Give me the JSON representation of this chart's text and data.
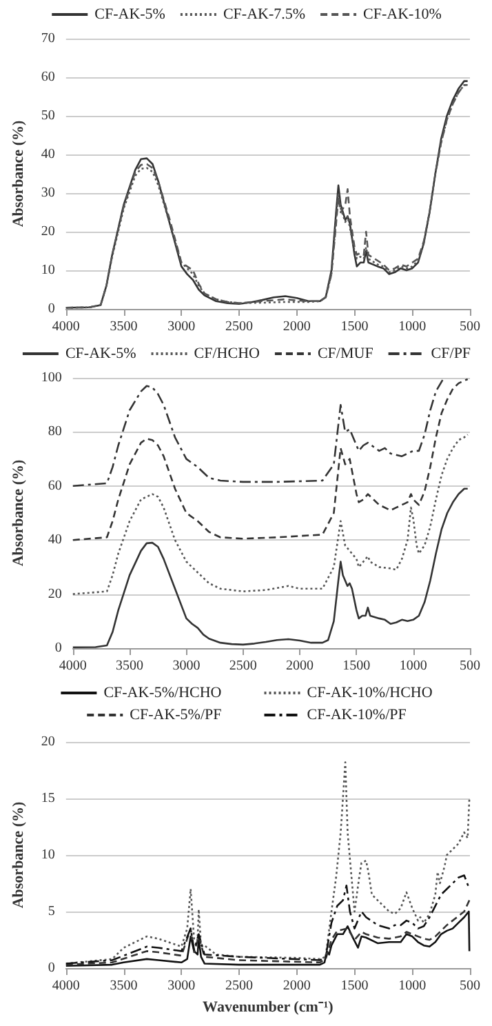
{
  "chart_data": [
    {
      "type": "line",
      "ylabel": "Absorbance (%)",
      "xlim": [
        4000,
        500
      ],
      "xticks": [
        4000,
        3500,
        3000,
        2500,
        2000,
        1500,
        1000,
        500
      ],
      "ylim": [
        0,
        70
      ],
      "yticks": [
        0,
        10,
        20,
        30,
        40,
        50,
        60,
        70
      ],
      "grid": "y",
      "legend": "top",
      "marker": "none",
      "series": [
        {
          "name": "CF-AK-5%",
          "color": "#333333",
          "line_style": "solid",
          "x": [
            4000,
            3800,
            3700,
            3650,
            3600,
            3500,
            3400,
            3350,
            3300,
            3250,
            3200,
            3100,
            3000,
            2950,
            2900,
            2850,
            2800,
            2700,
            2600,
            2500,
            2400,
            2300,
            2200,
            2100,
            2000,
            1900,
            1800,
            1750,
            1700,
            1660,
            1640,
            1620,
            1580,
            1560,
            1540,
            1500,
            1480,
            1450,
            1420,
            1400,
            1380,
            1300,
            1250,
            1200,
            1150,
            1100,
            1050,
            1000,
            950,
            900,
            850,
            800,
            750,
            700,
            650,
            600,
            550,
            520
          ],
          "values": [
            0.3,
            0.4,
            1,
            6,
            14,
            27,
            36,
            38.8,
            39,
            37.5,
            33,
            22,
            11,
            9,
            7.5,
            5,
            3.5,
            2,
            1.5,
            1.3,
            1.7,
            2.3,
            3,
            3.3,
            2.8,
            2,
            2,
            3,
            10,
            25,
            32,
            27,
            23,
            24,
            22,
            14,
            11,
            12,
            12,
            15,
            12,
            11,
            10.5,
            9,
            9.5,
            10.5,
            10,
            10.5,
            12,
            17,
            25,
            35,
            44,
            50,
            54,
            57,
            59,
            59
          ]
        },
        {
          "name": "CF-AK-7.5%",
          "color": "#555555",
          "line_style": "dotted",
          "x": [
            4000,
            3800,
            3700,
            3650,
            3600,
            3500,
            3400,
            3350,
            3300,
            3250,
            3200,
            3100,
            3000,
            2950,
            2900,
            2850,
            2800,
            2700,
            2600,
            2500,
            2300,
            2100,
            2000,
            1900,
            1800,
            1750,
            1700,
            1660,
            1640,
            1620,
            1580,
            1560,
            1540,
            1500,
            1480,
            1450,
            1420,
            1400,
            1380,
            1300,
            1250,
            1200,
            1150,
            1100,
            1050,
            1000,
            950,
            900,
            850,
            800,
            750,
            700,
            650,
            600,
            550,
            520
          ],
          "values": [
            0.3,
            0.4,
            1,
            6,
            13.5,
            26,
            34.5,
            36.3,
            36.5,
            35.5,
            32,
            22,
            12,
            10.5,
            9,
            6,
            4,
            2.5,
            1.8,
            1.5,
            1.6,
            1.8,
            1.8,
            1.8,
            2,
            3,
            9,
            23,
            30,
            26,
            22.5,
            24,
            21,
            15,
            13,
            13.5,
            13,
            16,
            13,
            11.5,
            11,
            9.5,
            10,
            11,
            10.5,
            11,
            12.5,
            17,
            25,
            35,
            43,
            49,
            53,
            56,
            58,
            58
          ]
        },
        {
          "name": "CF-AK-10%",
          "color": "#555555",
          "line_style": "dashed",
          "x": [
            4000,
            3800,
            3700,
            3650,
            3600,
            3500,
            3400,
            3350,
            3300,
            3250,
            3200,
            3100,
            3000,
            2950,
            2900,
            2850,
            2800,
            2700,
            2600,
            2500,
            2300,
            2100,
            2000,
            1900,
            1800,
            1750,
            1700,
            1660,
            1640,
            1620,
            1580,
            1560,
            1540,
            1500,
            1480,
            1450,
            1420,
            1400,
            1380,
            1300,
            1250,
            1200,
            1150,
            1100,
            1050,
            1000,
            950,
            900,
            850,
            800,
            750,
            700,
            650,
            600,
            550,
            520
          ],
          "values": [
            0.3,
            0.4,
            1,
            6,
            14,
            26.5,
            35.5,
            37.3,
            37.5,
            36.5,
            33,
            23,
            12,
            11,
            10,
            6.5,
            4,
            2.5,
            1.8,
            1.5,
            2,
            2.5,
            2.2,
            2,
            2,
            3,
            9,
            22,
            29,
            25,
            27,
            31,
            24,
            16,
            14,
            14.5,
            14,
            20,
            14,
            12.5,
            11.5,
            10,
            10.5,
            11.5,
            11,
            12,
            13,
            17.5,
            25,
            35,
            43,
            49,
            53,
            56,
            58,
            58
          ]
        }
      ]
    },
    {
      "type": "line",
      "ylabel": "Absorbance (%)",
      "xlim": [
        4000,
        500
      ],
      "xticks": [
        4000,
        3500,
        3000,
        2500,
        2000,
        1500,
        1000,
        500
      ],
      "ylim": [
        0,
        100
      ],
      "yticks": [
        0,
        20,
        40,
        60,
        80,
        100
      ],
      "grid": "y",
      "legend": "top",
      "marker": "none",
      "series": [
        {
          "name": "CF-AK-5%",
          "color": "#333333",
          "line_style": "solid",
          "x": [
            4000,
            3800,
            3700,
            3650,
            3600,
            3500,
            3400,
            3350,
            3300,
            3250,
            3200,
            3100,
            3000,
            2950,
            2900,
            2850,
            2800,
            2700,
            2600,
            2500,
            2400,
            2300,
            2200,
            2100,
            2000,
            1900,
            1800,
            1750,
            1700,
            1660,
            1640,
            1620,
            1580,
            1560,
            1540,
            1500,
            1480,
            1450,
            1420,
            1400,
            1380,
            1300,
            1250,
            1200,
            1150,
            1100,
            1050,
            1000,
            950,
            900,
            850,
            800,
            750,
            700,
            650,
            600,
            550,
            520
          ],
          "values": [
            0.3,
            0.4,
            1,
            6,
            14,
            27,
            36,
            38.8,
            39,
            37.5,
            33,
            22,
            11,
            9,
            7.5,
            5,
            3.5,
            2,
            1.5,
            1.3,
            1.7,
            2.3,
            3,
            3.3,
            2.8,
            2,
            2,
            3,
            10,
            25,
            32,
            27,
            23,
            24,
            22,
            14,
            11,
            12,
            12,
            15,
            12,
            11,
            10.5,
            9,
            9.5,
            10.5,
            10,
            10.5,
            12,
            17,
            25,
            35,
            44,
            50,
            54,
            57,
            59,
            59
          ]
        },
        {
          "name": "CF/HCHO",
          "color": "#555555",
          "line_style": "dotted",
          "x": [
            4000,
            3700,
            3650,
            3600,
            3500,
            3400,
            3300,
            3250,
            3200,
            3100,
            3000,
            2900,
            2800,
            2700,
            2500,
            2300,
            2100,
            2000,
            1800,
            1700,
            1640,
            1600,
            1560,
            1500,
            1480,
            1440,
            1400,
            1380,
            1300,
            1200,
            1150,
            1100,
            1050,
            1020,
            1000,
            970,
            950,
            900,
            850,
            800,
            750,
            700,
            650,
            600,
            550,
            520
          ],
          "values": [
            20,
            21,
            27,
            35,
            47,
            55,
            57,
            56,
            52,
            40,
            32,
            28,
            24,
            22,
            21,
            21.5,
            23,
            22,
            22,
            30,
            47,
            38,
            36,
            33,
            30,
            32,
            34,
            32,
            30,
            29.5,
            29,
            33,
            40,
            52,
            48,
            38,
            35,
            38,
            45,
            55,
            64,
            70,
            74,
            77,
            78,
            79
          ]
        },
        {
          "name": "CF/MUF",
          "color": "#333333",
          "line_style": "dashed",
          "x": [
            4000,
            3700,
            3650,
            3600,
            3500,
            3400,
            3350,
            3300,
            3250,
            3200,
            3100,
            3000,
            2900,
            2800,
            2700,
            2500,
            2200,
            1800,
            1700,
            1640,
            1600,
            1560,
            1500,
            1480,
            1440,
            1400,
            1300,
            1200,
            1150,
            1100,
            1050,
            1020,
            1000,
            950,
            900,
            850,
            800,
            750,
            700,
            650,
            600,
            550,
            520
          ],
          "values": [
            40,
            41,
            47,
            55,
            68,
            76,
            77.5,
            77,
            75,
            71,
            59,
            50,
            47,
            43,
            41,
            40.5,
            41,
            42,
            50,
            74,
            68,
            70,
            57,
            54,
            55,
            57,
            53,
            51,
            52,
            53,
            54,
            57,
            55,
            53,
            58,
            67,
            78,
            87,
            92,
            96,
            98,
            99,
            99.5
          ]
        },
        {
          "name": "CF/PF",
          "color": "#333333",
          "line_style": "dashdot",
          "x": [
            4000,
            3700,
            3650,
            3600,
            3500,
            3400,
            3350,
            3300,
            3250,
            3200,
            3100,
            3000,
            2900,
            2800,
            2700,
            2500,
            2200,
            1800,
            1700,
            1640,
            1600,
            1560,
            1500,
            1480,
            1440,
            1400,
            1300,
            1250,
            1200,
            1100,
            1050,
            1000,
            950,
            900,
            850,
            800,
            730
          ],
          "values": [
            60,
            61,
            67,
            75,
            88,
            95,
            97,
            96.5,
            94,
            90,
            78,
            70,
            67,
            63,
            62,
            61.5,
            61.5,
            62,
            68,
            90,
            80,
            81,
            75,
            73,
            75,
            76,
            73,
            74,
            72,
            71,
            72,
            73,
            73,
            79,
            88,
            95,
            100
          ]
        }
      ]
    },
    {
      "type": "line",
      "ylabel": "Absorbance (%)",
      "xlabel": "Wavenumber (cm⁻¹)",
      "xlim": [
        4000,
        500
      ],
      "xticks": [
        4000,
        3500,
        3000,
        2500,
        2000,
        1500,
        1000,
        500
      ],
      "ylim": [
        0,
        20
      ],
      "yticks": [
        0,
        5,
        10,
        15,
        20
      ],
      "grid": "y",
      "legend": "top",
      "marker": "none",
      "series": [
        {
          "name": "CF-AK-5%/HCHO",
          "color": "#111111",
          "line_style": "solid",
          "x": [
            4000,
            3600,
            3500,
            3300,
            3200,
            3000,
            2950,
            2920,
            2890,
            2860,
            2850,
            2830,
            2800,
            2500,
            1800,
            1760,
            1740,
            1720,
            1700,
            1650,
            1600,
            1560,
            1520,
            1500,
            1470,
            1440,
            1400,
            1300,
            1200,
            1100,
            1050,
            1000,
            950,
            900,
            850,
            800,
            750,
            700,
            650,
            600,
            550,
            510,
            505
          ],
          "values": [
            0.2,
            0.3,
            0.5,
            0.8,
            0.7,
            0.5,
            0.8,
            2.8,
            1.5,
            1.2,
            2.6,
            1,
            0.4,
            0.3,
            0.3,
            0.5,
            1.5,
            1.2,
            2,
            3,
            3,
            3.7,
            2.8,
            2.4,
            1.8,
            2.8,
            2.7,
            2.2,
            2.3,
            2.3,
            3,
            2.8,
            2.3,
            2,
            1.9,
            2.3,
            3,
            3.3,
            3.5,
            4,
            4.5,
            5,
            1.5
          ]
        },
        {
          "name": "CF-AK-10%/HCHO",
          "color": "#555555",
          "line_style": "dotted",
          "x": [
            4000,
            3600,
            3500,
            3300,
            3200,
            3000,
            2950,
            2920,
            2890,
            2860,
            2850,
            2830,
            2800,
            2700,
            2500,
            2000,
            1800,
            1750,
            1700,
            1660,
            1620,
            1580,
            1560,
            1500,
            1460,
            1440,
            1400,
            1380,
            1350,
            1300,
            1200,
            1150,
            1100,
            1050,
            1000,
            950,
            930,
            900,
            850,
            800,
            780,
            760,
            720,
            700,
            650,
            600,
            550,
            520,
            505
          ],
          "values": [
            0.4,
            0.8,
            1.8,
            2.8,
            2.6,
            1.9,
            3.5,
            7,
            2.5,
            2.5,
            5.2,
            2,
            2,
            1.2,
            1,
            0.9,
            0.8,
            1,
            5,
            8,
            12,
            18.2,
            12,
            5,
            8,
            9.3,
            9.5,
            8.5,
            6.5,
            6,
            5,
            4.8,
            5.3,
            6.7,
            5.3,
            4.2,
            4.5,
            4,
            4.8,
            6.5,
            8.5,
            7.5,
            9,
            10,
            10.5,
            11,
            12,
            11.5,
            15
          ]
        },
        {
          "name": "CF-AK-5%/PF",
          "color": "#333333",
          "line_style": "dashed",
          "x": [
            4000,
            3600,
            3300,
            3200,
            3000,
            2920,
            2890,
            2850,
            2800,
            2500,
            1800,
            1750,
            1700,
            1650,
            1560,
            1500,
            1440,
            1400,
            1300,
            1200,
            1100,
            1050,
            1000,
            900,
            850,
            800,
            750,
            700,
            650,
            600,
            550,
            505
          ],
          "values": [
            0.3,
            0.5,
            1.5,
            1.4,
            1.1,
            3.5,
            1.4,
            2.8,
            1,
            0.7,
            0.5,
            0.8,
            2.5,
            3.3,
            3.5,
            2.5,
            3.2,
            3,
            2.7,
            2.6,
            2.8,
            3.2,
            3,
            2.6,
            2.5,
            2.8,
            3.3,
            3.8,
            4.2,
            4.6,
            5,
            6
          ]
        },
        {
          "name": "CF-AK-10%/PF",
          "color": "#111111",
          "line_style": "dashdot",
          "x": [
            4000,
            3600,
            3300,
            3200,
            3000,
            2920,
            2890,
            2850,
            2800,
            2500,
            1800,
            1750,
            1700,
            1650,
            1600,
            1570,
            1540,
            1500,
            1440,
            1400,
            1300,
            1200,
            1150,
            1100,
            1050,
            1000,
            950,
            900,
            850,
            800,
            750,
            700,
            650,
            600,
            550,
            505
          ],
          "values": [
            0.4,
            0.7,
            1.9,
            1.8,
            1.5,
            3.5,
            1.6,
            3,
            1.2,
            1,
            0.7,
            1,
            4,
            5.5,
            6,
            7.3,
            5,
            3.5,
            5,
            4.5,
            3.8,
            3.5,
            3.8,
            3.8,
            4.2,
            4,
            3.5,
            3.7,
            4.5,
            5.5,
            6.5,
            7,
            7.5,
            8,
            8.2,
            7
          ]
        }
      ]
    }
  ]
}
